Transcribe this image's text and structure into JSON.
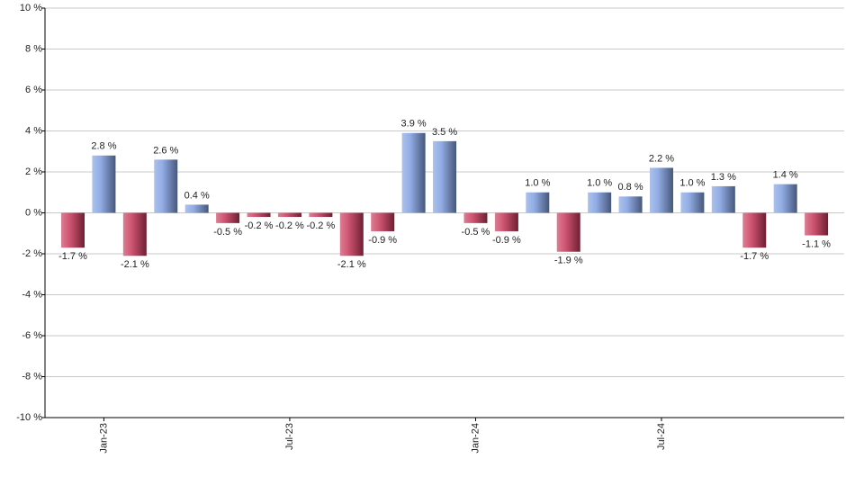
{
  "chart_data": {
    "type": "bar",
    "categories": [
      null,
      "Jan-23",
      null,
      null,
      null,
      null,
      null,
      "Jul-23",
      null,
      null,
      null,
      null,
      null,
      "Jan-24",
      null,
      null,
      null,
      null,
      null,
      "Jul-24",
      null,
      null,
      null,
      null,
      null
    ],
    "values": [
      -1.7,
      2.8,
      -2.1,
      2.6,
      0.4,
      -0.5,
      -0.2,
      -0.2,
      -0.2,
      -2.1,
      -0.9,
      3.9,
      3.5,
      -0.5,
      -0.9,
      1.0,
      -1.9,
      1.0,
      0.8,
      2.2,
      1.0,
      1.3,
      -1.7,
      1.4,
      -1.1
    ],
    "value_labels": [
      "-1.7 %",
      "2.8 %",
      "-2.1 %",
      "2.6 %",
      "0.4 %",
      "-0.5 %",
      "-0.2 %",
      "-0.2 %",
      "-0.2 %",
      "-2.1 %",
      "-0.9 %",
      "3.9 %",
      "3.5 %",
      "-0.5 %",
      "-0.9 %",
      "1.0 %",
      "-1.9 %",
      "1.0 %",
      "0.8 %",
      "2.2 %",
      "1.0 %",
      "1.3 %",
      "-1.7 %",
      "1.4 %",
      "-1.1 %"
    ],
    "color": "#7f9fe0",
    "negative_color": "#c8385a",
    "ylim": [
      -10,
      10
    ],
    "yticks": [
      {
        "value": -10,
        "label": "-10 %"
      },
      {
        "value": -8,
        "label": "-8 %"
      },
      {
        "value": -6,
        "label": "-6 %"
      },
      {
        "value": -4,
        "label": "-4 %"
      },
      {
        "value": -2,
        "label": "-2 %"
      },
      {
        "value": 0,
        "label": "0 %"
      },
      {
        "value": 2,
        "label": "2 %"
      },
      {
        "value": 4,
        "label": "4 %"
      },
      {
        "value": 6,
        "label": "6 %"
      },
      {
        "value": 8,
        "label": "8 %"
      },
      {
        "value": 10,
        "label": "10 %"
      }
    ],
    "grid": true
  }
}
